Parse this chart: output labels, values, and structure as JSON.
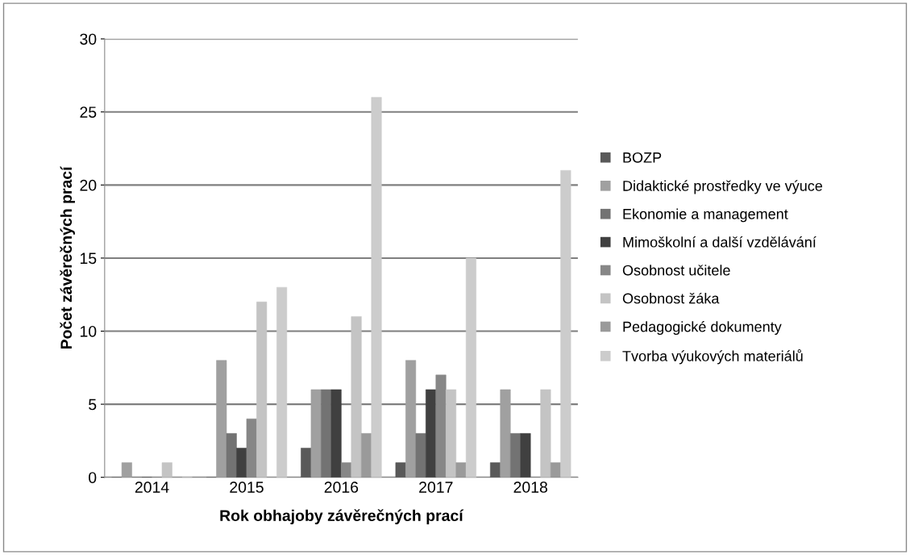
{
  "chart_data": {
    "type": "bar",
    "xlabel": "Rok obhajoby závěrečných prací",
    "ylabel": "Počet závěrečných prací",
    "categories": [
      "2014",
      "2015",
      "2016",
      "2017",
      "2018"
    ],
    "series": [
      {
        "name": "BOZP",
        "color": "#595959",
        "values": [
          0,
          0,
          2,
          1,
          1
        ]
      },
      {
        "name": "Didaktické prostředky ve výuce",
        "color": "#a0a0a0",
        "values": [
          1,
          8,
          6,
          8,
          6
        ]
      },
      {
        "name": "Ekonomie a management",
        "color": "#737373",
        "values": [
          0,
          3,
          6,
          3,
          3
        ]
      },
      {
        "name": "Mimoškolní a další vzdělávání",
        "color": "#404040",
        "values": [
          0,
          2,
          6,
          6,
          3
        ]
      },
      {
        "name": "Osobnost učitele",
        "color": "#878787",
        "values": [
          0,
          4,
          1,
          7,
          0
        ]
      },
      {
        "name": "Osobnost žáka",
        "color": "#c4c4c4",
        "values": [
          1,
          12,
          11,
          6,
          6
        ]
      },
      {
        "name": "Pedagogické dokumenty",
        "color": "#9a9a9a",
        "values": [
          0,
          0,
          3,
          1,
          1
        ]
      },
      {
        "name": "Tvorba výukových materiálů",
        "color": "#cccccc",
        "values": [
          0,
          13,
          26,
          15,
          21
        ]
      }
    ],
    "ylim": [
      0,
      30
    ],
    "yticks": [
      0,
      5,
      10,
      15,
      20,
      25,
      30
    ],
    "grid": "y",
    "legend": "right"
  }
}
